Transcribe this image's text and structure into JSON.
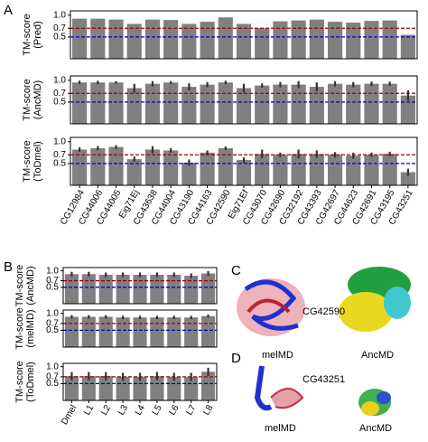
{
  "chart_data": [
    {
      "type": "bar",
      "ylabel_lines": [
        "TM-score",
        "(Pred)"
      ],
      "color": "#808080",
      "values": [
        0.92,
        0.92,
        0.9,
        0.8,
        0.9,
        0.89,
        0.8,
        0.85,
        0.95,
        0.8,
        0.7,
        0.86,
        0.88,
        0.9,
        0.85,
        0.83,
        0.87,
        0.88,
        0.55
      ],
      "ylim": [
        0,
        1.1
      ],
      "yticks": [
        0.5,
        0.7,
        {
          "value": 1,
          "label": "1.0"
        }
      ],
      "hlines": [
        {
          "value": 0.7,
          "color": "#a00000"
        },
        {
          "value": 0.5,
          "color": "#0000cc"
        }
      ]
    },
    {
      "type": "bar",
      "ylabel_lines": [
        "TM-score",
        "(AncMD)"
      ],
      "color": "#808080",
      "values": [
        0.95,
        0.95,
        0.95,
        0.82,
        0.92,
        0.95,
        0.85,
        0.9,
        0.95,
        0.82,
        0.88,
        0.9,
        0.9,
        0.85,
        0.92,
        0.9,
        0.92,
        0.92,
        0.65
      ],
      "errors": [
        0.04,
        0.04,
        0.03,
        0.1,
        0.06,
        0.03,
        0.08,
        0.06,
        0.04,
        0.1,
        0.05,
        0.06,
        0.08,
        0.1,
        0.06,
        0.06,
        0.05,
        0.05,
        0.12
      ],
      "ylim": [
        0,
        1.1
      ],
      "yticks": [
        0.5,
        0.7,
        {
          "value": 1,
          "label": "1.0"
        }
      ],
      "hlines": [
        {
          "value": 0.7,
          "color": "#a00000"
        },
        {
          "value": 0.5,
          "color": "#0000cc"
        }
      ]
    },
    {
      "type": "bar",
      "ylabel_lines": [
        "TM-score",
        "(ToDmel)"
      ],
      "color": "#808080",
      "categories": [
        "CG12984",
        "CG44006",
        "CG44005",
        "Eig71Ej",
        "CG43638",
        "CG44004",
        "CG43190",
        "CG44163",
        "CG42590",
        "Eig71Ef",
        "CG43070",
        "CG42690",
        "CG32192",
        "CG43393",
        "CG42697",
        "CG44623",
        "CG42691",
        "CG43195",
        "CG43251"
      ],
      "values": [
        0.82,
        0.85,
        0.88,
        0.6,
        0.82,
        0.8,
        0.52,
        0.75,
        0.85,
        0.58,
        0.72,
        0.7,
        0.72,
        0.72,
        0.7,
        0.68,
        0.7,
        0.72,
        0.3
      ],
      "errors": [
        0.05,
        0.05,
        0.04,
        0.06,
        0.08,
        0.05,
        0.07,
        0.05,
        0.04,
        0.06,
        0.1,
        0.05,
        0.1,
        0.08,
        0.06,
        0.07,
        0.05,
        0.05,
        0.08
      ],
      "ylim": [
        0,
        1.1
      ],
      "yticks": [
        0.5,
        0.7,
        {
          "value": 1,
          "label": "1.0"
        }
      ],
      "hlines": [
        {
          "value": 0.7,
          "color": "#a00000"
        },
        {
          "value": 0.5,
          "color": "#0000cc"
        }
      ]
    },
    {
      "type": "bar",
      "ylabel_lines": [
        "TM-score",
        "(AncMD)"
      ],
      "color": "#808080",
      "values": [
        0.9,
        0.9,
        0.88,
        0.88,
        0.88,
        0.88,
        0.88,
        0.85,
        0.92
      ],
      "errors": [
        0.07,
        0.07,
        0.07,
        0.07,
        0.07,
        0.07,
        0.07,
        0.07,
        0.07
      ],
      "ylim": [
        0,
        1.1
      ],
      "yticks": [
        0.5,
        0.7,
        {
          "value": 1,
          "label": "1.0"
        }
      ],
      "hlines": [
        {
          "value": 0.7,
          "color": "#a00000"
        },
        {
          "value": 0.5,
          "color": "#0000cc"
        }
      ]
    },
    {
      "type": "bar",
      "ylabel_lines": [
        "TM-score",
        "(melMD)"
      ],
      "color": "#808080",
      "values": [
        0.9,
        0.9,
        0.9,
        0.88,
        0.88,
        0.88,
        0.88,
        0.88,
        0.92
      ],
      "errors": [
        0.05,
        0.05,
        0.05,
        0.05,
        0.05,
        0.05,
        0.05,
        0.05,
        0.05
      ],
      "ylim": [
        0,
        1.1
      ],
      "yticks": [
        0.5,
        0.7,
        {
          "value": 1,
          "label": "1.0"
        }
      ],
      "hlines": [
        {
          "value": 0.7,
          "color": "#a00000"
        },
        {
          "value": 0.5,
          "color": "#0000cc"
        }
      ]
    },
    {
      "type": "bar",
      "ylabel_lines": [
        "TM-score",
        "(ToDmel)"
      ],
      "color": "#808080",
      "categories": [
        "Dmel",
        "L1",
        "L2",
        "L3",
        "L4",
        "L5",
        "L6",
        "L7",
        "L8"
      ],
      "values": [
        0.72,
        0.72,
        0.72,
        0.7,
        0.7,
        0.72,
        0.7,
        0.7,
        0.85
      ],
      "errors": [
        0.12,
        0.12,
        0.12,
        0.12,
        0.12,
        0.12,
        0.12,
        0.12,
        0.12
      ],
      "ylim": [
        0,
        1.1
      ],
      "yticks": [
        0.5,
        0.7,
        {
          "value": 1,
          "label": "1.0"
        }
      ],
      "hlines": [
        {
          "value": 0.7,
          "color": "#a00000"
        },
        {
          "value": 0.5,
          "color": "#0000cc"
        }
      ]
    }
  ],
  "panel_labels": [
    "A",
    "B",
    "C",
    "D"
  ],
  "structures": {
    "c_name": "CG42590",
    "c_left": "melMD",
    "c_right": "AncMD",
    "d_name": "CG43251",
    "d_left": "melMD",
    "d_right": "AncMD"
  }
}
